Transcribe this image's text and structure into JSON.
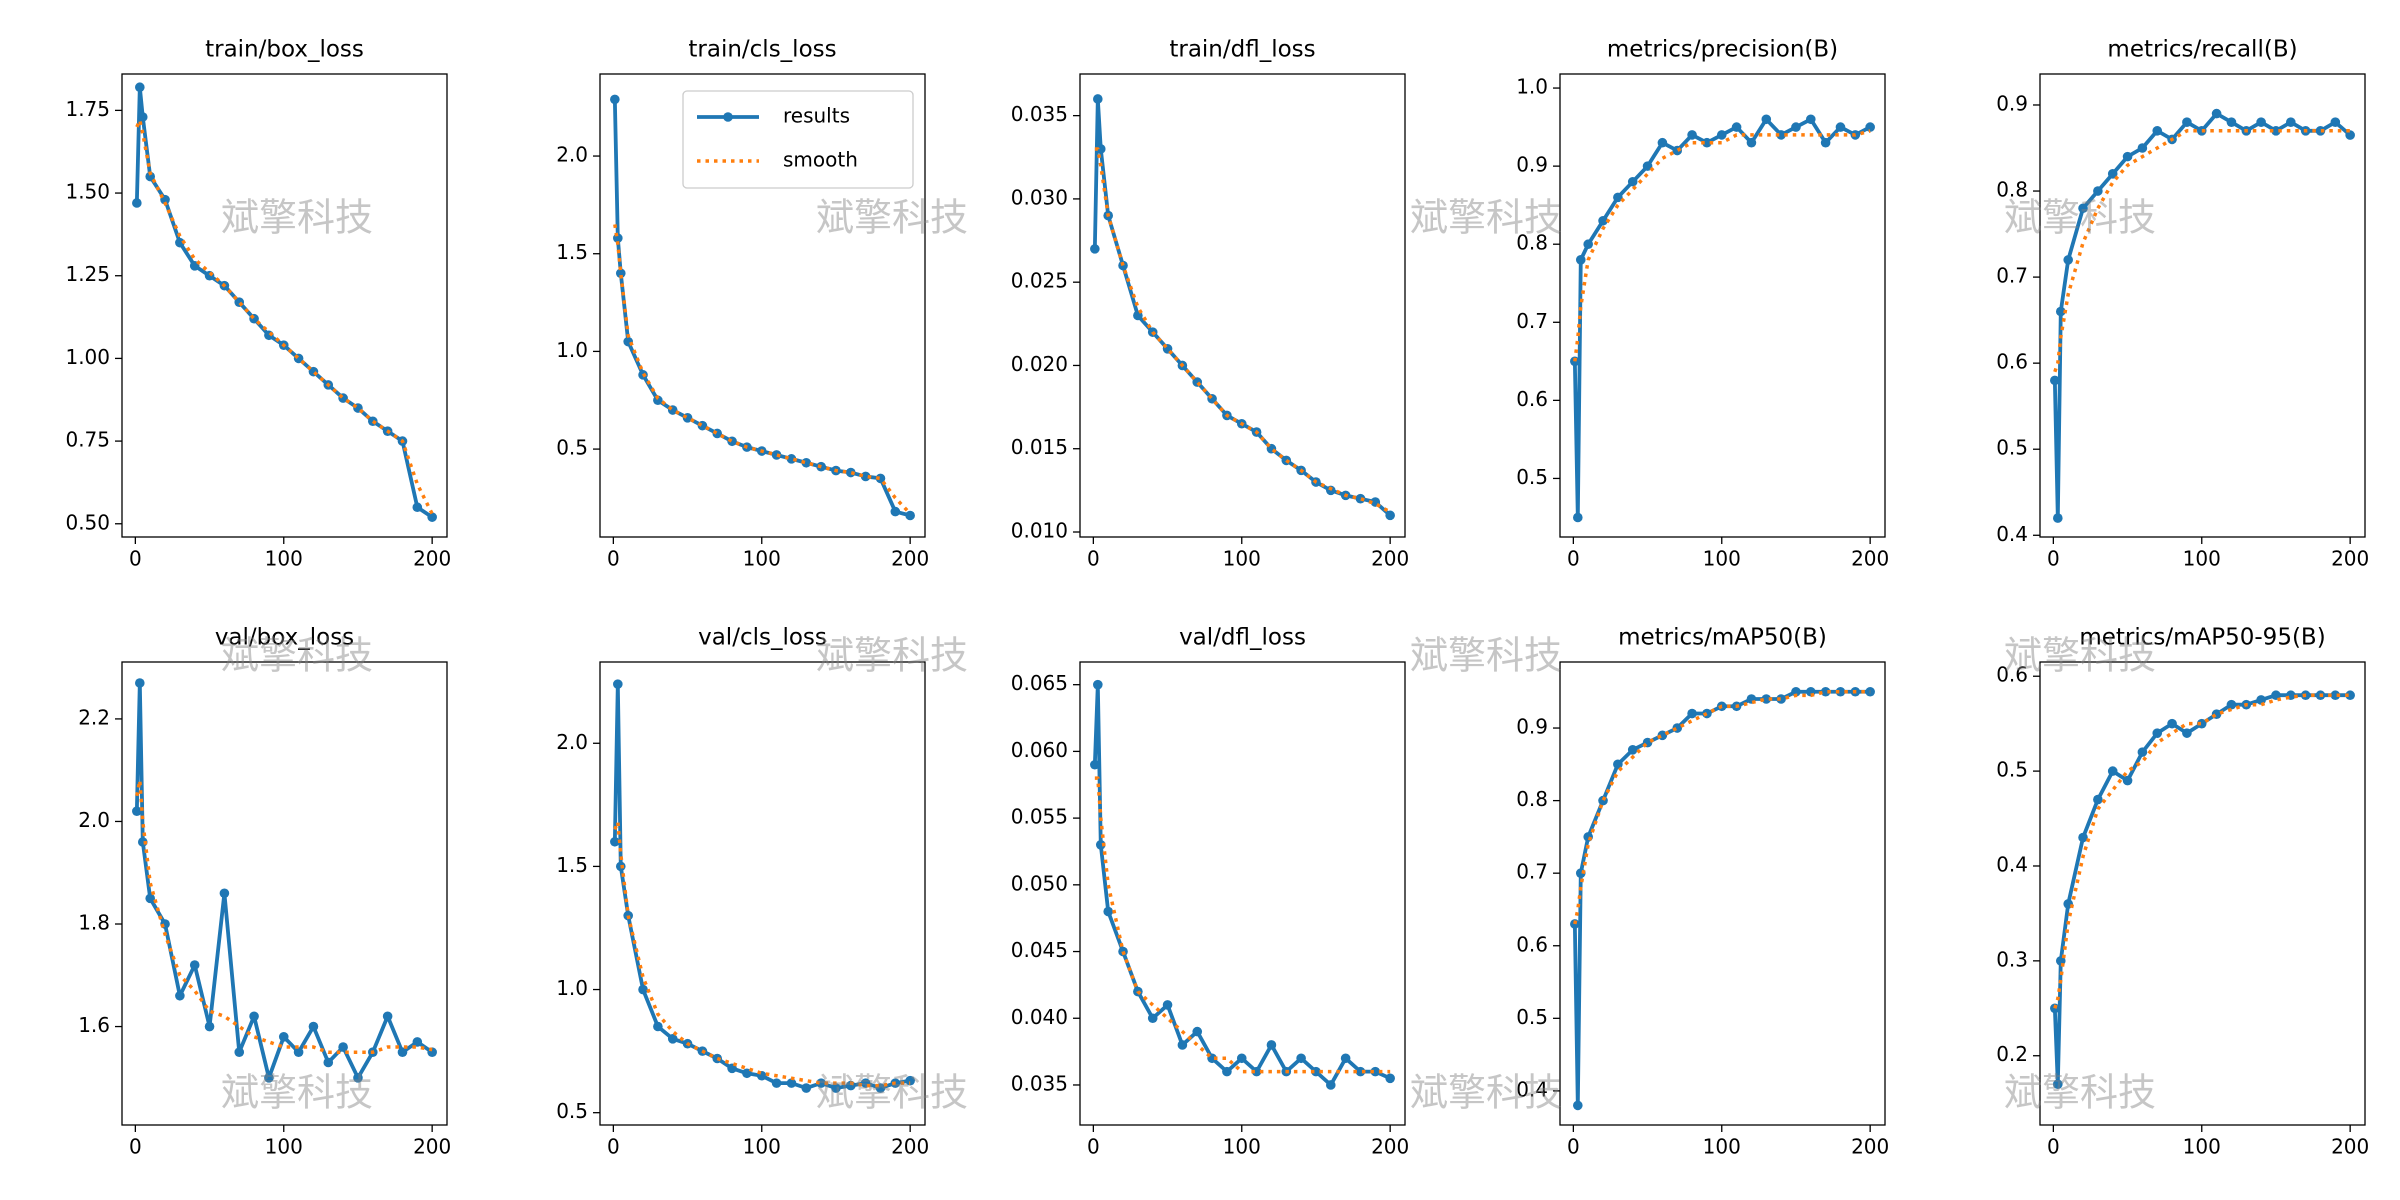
{
  "watermark": "斌擎科技",
  "chart_data": [
    {
      "type": "line",
      "title": "train/box_loss",
      "x": [
        1,
        3,
        5,
        10,
        20,
        30,
        40,
        50,
        60,
        70,
        80,
        90,
        100,
        110,
        120,
        130,
        140,
        150,
        160,
        170,
        180,
        190,
        200
      ],
      "series": [
        {
          "name": "results",
          "color": "#1f77b4",
          "marker": "o",
          "linestyle": "solid",
          "values": [
            1.47,
            1.82,
            1.73,
            1.55,
            1.48,
            1.35,
            1.28,
            1.25,
            1.22,
            1.17,
            1.12,
            1.07,
            1.04,
            1.0,
            0.96,
            0.92,
            0.88,
            0.85,
            0.81,
            0.78,
            0.75,
            0.55,
            0.52
          ]
        },
        {
          "name": "smooth",
          "color": "#ff7f0e",
          "linestyle": "dotted",
          "values": [
            1.7,
            1.72,
            1.68,
            1.56,
            1.47,
            1.37,
            1.3,
            1.26,
            1.22,
            1.17,
            1.12,
            1.08,
            1.04,
            1.0,
            0.96,
            0.92,
            0.88,
            0.85,
            0.81,
            0.78,
            0.75,
            0.62,
            0.53
          ]
        }
      ],
      "xlim": [
        -9,
        210
      ],
      "xticks": [
        0,
        100,
        200
      ],
      "ylim": [
        0.46,
        1.86
      ],
      "yticks": [
        {
          "value": 0.5,
          "label": "0.50"
        },
        0.75,
        {
          "value": 1,
          "label": "1.00"
        },
        1.25,
        {
          "value": 1.5,
          "label": "1.50"
        },
        1.75
      ]
    },
    {
      "type": "line",
      "title": "train/cls_loss",
      "legend": "upper right",
      "x": [
        1,
        3,
        5,
        10,
        20,
        30,
        40,
        50,
        60,
        70,
        80,
        90,
        100,
        110,
        120,
        130,
        140,
        150,
        160,
        170,
        180,
        190,
        200
      ],
      "series": [
        {
          "name": "results",
          "color": "#1f77b4",
          "marker": "o",
          "linestyle": "solid",
          "values": [
            2.29,
            1.58,
            1.4,
            1.05,
            0.88,
            0.75,
            0.7,
            0.66,
            0.62,
            0.58,
            0.54,
            0.51,
            0.49,
            0.47,
            0.45,
            0.43,
            0.41,
            0.39,
            0.38,
            0.36,
            0.35,
            0.18,
            0.16
          ]
        },
        {
          "name": "smooth",
          "color": "#ff7f0e",
          "linestyle": "dotted",
          "values": [
            1.65,
            1.55,
            1.4,
            1.08,
            0.89,
            0.76,
            0.7,
            0.66,
            0.62,
            0.58,
            0.54,
            0.51,
            0.49,
            0.47,
            0.45,
            0.43,
            0.41,
            0.39,
            0.38,
            0.36,
            0.35,
            0.25,
            0.17
          ]
        }
      ],
      "xlim": [
        -9,
        210
      ],
      "xticks": [
        0,
        100,
        200
      ],
      "ylim": [
        0.05,
        2.42
      ],
      "yticks": [
        0.5,
        {
          "value": 1,
          "label": "1.0"
        },
        1.5,
        {
          "value": 2,
          "label": "2.0"
        }
      ]
    },
    {
      "type": "line",
      "title": "train/dfl_loss",
      "x": [
        1,
        3,
        5,
        10,
        20,
        30,
        40,
        50,
        60,
        70,
        80,
        90,
        100,
        110,
        120,
        130,
        140,
        150,
        160,
        170,
        180,
        190,
        200
      ],
      "series": [
        {
          "name": "results",
          "color": "#1f77b4",
          "marker": "o",
          "linestyle": "solid",
          "values": [
            0.027,
            0.036,
            0.033,
            0.029,
            0.026,
            0.023,
            0.022,
            0.021,
            0.02,
            0.019,
            0.018,
            0.017,
            0.0165,
            0.016,
            0.015,
            0.0143,
            0.0137,
            0.013,
            0.0125,
            0.0122,
            0.012,
            0.0118,
            0.011
          ]
        },
        {
          "name": "smooth",
          "color": "#ff7f0e",
          "linestyle": "dotted",
          "values": [
            0.033,
            0.033,
            0.032,
            0.029,
            0.026,
            0.0235,
            0.022,
            0.021,
            0.02,
            0.019,
            0.018,
            0.017,
            0.0165,
            0.016,
            0.015,
            0.0143,
            0.0137,
            0.013,
            0.0126,
            0.0122,
            0.012,
            0.0117,
            0.0112
          ]
        }
      ],
      "xlim": [
        -9,
        210
      ],
      "xticks": [
        0,
        100,
        200
      ],
      "ylim": [
        0.0097,
        0.0375
      ],
      "yticks": [
        {
          "value": 0.01,
          "label": "0.010"
        },
        0.015,
        {
          "value": 0.02,
          "label": "0.020"
        },
        0.025,
        {
          "value": 0.03,
          "label": "0.030"
        },
        0.035
      ]
    },
    {
      "type": "line",
      "title": "metrics/precision(B)",
      "x": [
        1,
        3,
        5,
        10,
        20,
        30,
        40,
        50,
        60,
        70,
        80,
        90,
        100,
        110,
        120,
        130,
        140,
        150,
        160,
        170,
        180,
        190,
        200
      ],
      "series": [
        {
          "name": "results",
          "color": "#1f77b4",
          "marker": "o",
          "linestyle": "solid",
          "values": [
            0.65,
            0.45,
            0.78,
            0.8,
            0.83,
            0.86,
            0.88,
            0.9,
            0.93,
            0.92,
            0.94,
            0.93,
            0.94,
            0.95,
            0.93,
            0.96,
            0.94,
            0.95,
            0.96,
            0.93,
            0.95,
            0.94,
            0.95
          ]
        },
        {
          "name": "smooth",
          "color": "#ff7f0e",
          "linestyle": "dotted",
          "values": [
            0.65,
            0.68,
            0.72,
            0.78,
            0.82,
            0.85,
            0.87,
            0.89,
            0.91,
            0.92,
            0.93,
            0.93,
            0.93,
            0.94,
            0.94,
            0.94,
            0.94,
            0.94,
            0.94,
            0.94,
            0.94,
            0.94,
            0.945
          ]
        }
      ],
      "xlim": [
        -9,
        210
      ],
      "xticks": [
        0,
        100,
        200
      ],
      "ylim": [
        0.425,
        1.018
      ],
      "yticks": [
        0.5,
        0.6,
        0.7,
        0.8,
        0.9,
        {
          "value": 1,
          "label": "1.0"
        }
      ]
    },
    {
      "type": "line",
      "title": "metrics/recall(B)",
      "x": [
        1,
        3,
        5,
        10,
        20,
        30,
        40,
        50,
        60,
        70,
        80,
        90,
        100,
        110,
        120,
        130,
        140,
        150,
        160,
        170,
        180,
        190,
        200
      ],
      "series": [
        {
          "name": "results",
          "color": "#1f77b4",
          "marker": "o",
          "linestyle": "solid",
          "values": [
            0.58,
            0.42,
            0.66,
            0.72,
            0.78,
            0.8,
            0.82,
            0.84,
            0.85,
            0.87,
            0.86,
            0.88,
            0.87,
            0.89,
            0.88,
            0.87,
            0.88,
            0.87,
            0.88,
            0.87,
            0.87,
            0.88,
            0.865
          ]
        },
        {
          "name": "smooth",
          "color": "#ff7f0e",
          "linestyle": "dotted",
          "values": [
            0.59,
            0.6,
            0.63,
            0.68,
            0.74,
            0.78,
            0.81,
            0.83,
            0.84,
            0.85,
            0.86,
            0.87,
            0.87,
            0.87,
            0.87,
            0.87,
            0.87,
            0.87,
            0.87,
            0.87,
            0.87,
            0.87,
            0.87
          ]
        }
      ],
      "xlim": [
        -9,
        210
      ],
      "xticks": [
        0,
        100,
        200
      ],
      "ylim": [
        0.398,
        0.936
      ],
      "yticks": [
        0.4,
        0.5,
        0.6,
        0.7,
        0.8,
        0.9
      ]
    },
    {
      "type": "line",
      "title": "val/box_loss",
      "x": [
        1,
        3,
        5,
        10,
        20,
        30,
        40,
        50,
        60,
        70,
        80,
        90,
        100,
        110,
        120,
        130,
        140,
        150,
        160,
        170,
        180,
        190,
        200
      ],
      "series": [
        {
          "name": "results",
          "color": "#1f77b4",
          "marker": "o",
          "linestyle": "solid",
          "values": [
            2.02,
            2.27,
            1.96,
            1.85,
            1.8,
            1.66,
            1.72,
            1.6,
            1.86,
            1.55,
            1.62,
            1.5,
            1.58,
            1.55,
            1.6,
            1.53,
            1.56,
            1.5,
            1.55,
            1.62,
            1.55,
            1.57,
            1.55
          ]
        },
        {
          "name": "smooth",
          "color": "#ff7f0e",
          "linestyle": "dotted",
          "values": [
            2.05,
            2.08,
            2.0,
            1.88,
            1.78,
            1.7,
            1.67,
            1.63,
            1.62,
            1.6,
            1.58,
            1.57,
            1.56,
            1.56,
            1.56,
            1.55,
            1.55,
            1.55,
            1.55,
            1.56,
            1.56,
            1.56,
            1.555
          ]
        }
      ],
      "xlim": [
        -9,
        210
      ],
      "xticks": [
        0,
        100,
        200
      ],
      "ylim": [
        1.408,
        2.311
      ],
      "yticks": [
        1.6,
        1.8,
        {
          "value": 2,
          "label": "2.0"
        },
        2.2
      ]
    },
    {
      "type": "line",
      "title": "val/cls_loss",
      "x": [
        1,
        3,
        5,
        10,
        20,
        30,
        40,
        50,
        60,
        70,
        80,
        90,
        100,
        110,
        120,
        130,
        140,
        150,
        160,
        170,
        180,
        190,
        200
      ],
      "series": [
        {
          "name": "results",
          "color": "#1f77b4",
          "marker": "o",
          "linestyle": "solid",
          "values": [
            1.6,
            2.24,
            1.5,
            1.3,
            1.0,
            0.85,
            0.8,
            0.78,
            0.75,
            0.72,
            0.68,
            0.66,
            0.65,
            0.62,
            0.62,
            0.6,
            0.62,
            0.6,
            0.61,
            0.62,
            0.6,
            0.62,
            0.63
          ]
        },
        {
          "name": "smooth",
          "color": "#ff7f0e",
          "linestyle": "dotted",
          "values": [
            1.65,
            1.68,
            1.55,
            1.3,
            1.05,
            0.9,
            0.83,
            0.78,
            0.75,
            0.72,
            0.7,
            0.68,
            0.66,
            0.65,
            0.64,
            0.63,
            0.62,
            0.62,
            0.62,
            0.61,
            0.61,
            0.62,
            0.62
          ]
        }
      ],
      "xlim": [
        -9,
        210
      ],
      "xticks": [
        0,
        100,
        200
      ],
      "ylim": [
        0.45,
        2.33
      ],
      "yticks": [
        0.5,
        {
          "value": 1,
          "label": "1.0"
        },
        1.5,
        {
          "value": 2,
          "label": "2.0"
        }
      ]
    },
    {
      "type": "line",
      "title": "val/dfl_loss",
      "x": [
        1,
        3,
        5,
        10,
        20,
        30,
        40,
        50,
        60,
        70,
        80,
        90,
        100,
        110,
        120,
        130,
        140,
        150,
        160,
        170,
        180,
        190,
        200
      ],
      "series": [
        {
          "name": "results",
          "color": "#1f77b4",
          "marker": "o",
          "linestyle": "solid",
          "values": [
            0.059,
            0.065,
            0.053,
            0.048,
            0.045,
            0.042,
            0.04,
            0.041,
            0.038,
            0.039,
            0.037,
            0.036,
            0.037,
            0.036,
            0.038,
            0.036,
            0.037,
            0.036,
            0.035,
            0.037,
            0.036,
            0.036,
            0.0355
          ]
        },
        {
          "name": "smooth",
          "color": "#ff7f0e",
          "linestyle": "dotted",
          "values": [
            0.058,
            0.058,
            0.055,
            0.05,
            0.045,
            0.042,
            0.041,
            0.04,
            0.039,
            0.038,
            0.037,
            0.037,
            0.036,
            0.036,
            0.036,
            0.036,
            0.036,
            0.036,
            0.036,
            0.036,
            0.036,
            0.036,
            0.036
          ]
        }
      ],
      "xlim": [
        -9,
        210
      ],
      "xticks": [
        0,
        100,
        200
      ],
      "ylim": [
        0.032,
        0.0667
      ],
      "yticks": [
        0.035,
        {
          "value": 0.04,
          "label": "0.040"
        },
        0.045,
        {
          "value": 0.05,
          "label": "0.050"
        },
        0.055,
        {
          "value": 0.06,
          "label": "0.060"
        },
        0.065
      ]
    },
    {
      "type": "line",
      "title": "metrics/mAP50(B)",
      "x": [
        1,
        3,
        5,
        10,
        20,
        30,
        40,
        50,
        60,
        70,
        80,
        90,
        100,
        110,
        120,
        130,
        140,
        150,
        160,
        170,
        180,
        190,
        200
      ],
      "series": [
        {
          "name": "results",
          "color": "#1f77b4",
          "marker": "o",
          "linestyle": "solid",
          "values": [
            0.63,
            0.38,
            0.7,
            0.75,
            0.8,
            0.85,
            0.87,
            0.88,
            0.89,
            0.9,
            0.92,
            0.92,
            0.93,
            0.93,
            0.94,
            0.94,
            0.94,
            0.95,
            0.95,
            0.95,
            0.95,
            0.95,
            0.95
          ]
        },
        {
          "name": "smooth",
          "color": "#ff7f0e",
          "linestyle": "dotted",
          "values": [
            0.63,
            0.65,
            0.68,
            0.74,
            0.8,
            0.84,
            0.86,
            0.88,
            0.89,
            0.9,
            0.91,
            0.92,
            0.93,
            0.93,
            0.935,
            0.94,
            0.94,
            0.945,
            0.945,
            0.95,
            0.95,
            0.95,
            0.95
          ]
        }
      ],
      "xlim": [
        -9,
        210
      ],
      "xticks": [
        0,
        100,
        200
      ],
      "ylim": [
        0.353,
        0.991
      ],
      "yticks": [
        0.4,
        0.5,
        0.6,
        0.7,
        0.8,
        0.9
      ]
    },
    {
      "type": "line",
      "title": "metrics/mAP50-95(B)",
      "x": [
        1,
        3,
        5,
        10,
        20,
        30,
        40,
        50,
        60,
        70,
        80,
        90,
        100,
        110,
        120,
        130,
        140,
        150,
        160,
        170,
        180,
        190,
        200
      ],
      "series": [
        {
          "name": "results",
          "color": "#1f77b4",
          "marker": "o",
          "linestyle": "solid",
          "values": [
            0.25,
            0.17,
            0.3,
            0.36,
            0.43,
            0.47,
            0.5,
            0.49,
            0.52,
            0.54,
            0.55,
            0.54,
            0.55,
            0.56,
            0.57,
            0.57,
            0.575,
            0.58,
            0.58,
            0.58,
            0.58,
            0.58,
            0.58
          ]
        },
        {
          "name": "smooth",
          "color": "#ff7f0e",
          "linestyle": "dotted",
          "values": [
            0.25,
            0.26,
            0.28,
            0.34,
            0.41,
            0.46,
            0.48,
            0.5,
            0.51,
            0.53,
            0.54,
            0.55,
            0.55,
            0.56,
            0.565,
            0.57,
            0.57,
            0.575,
            0.578,
            0.58,
            0.58,
            0.58,
            0.58
          ]
        }
      ],
      "xlim": [
        -9,
        210
      ],
      "xticks": [
        0,
        100,
        200
      ],
      "ylim": [
        0.127,
        0.615
      ],
      "yticks": [
        0.2,
        0.3,
        0.4,
        0.5,
        0.6
      ]
    }
  ]
}
